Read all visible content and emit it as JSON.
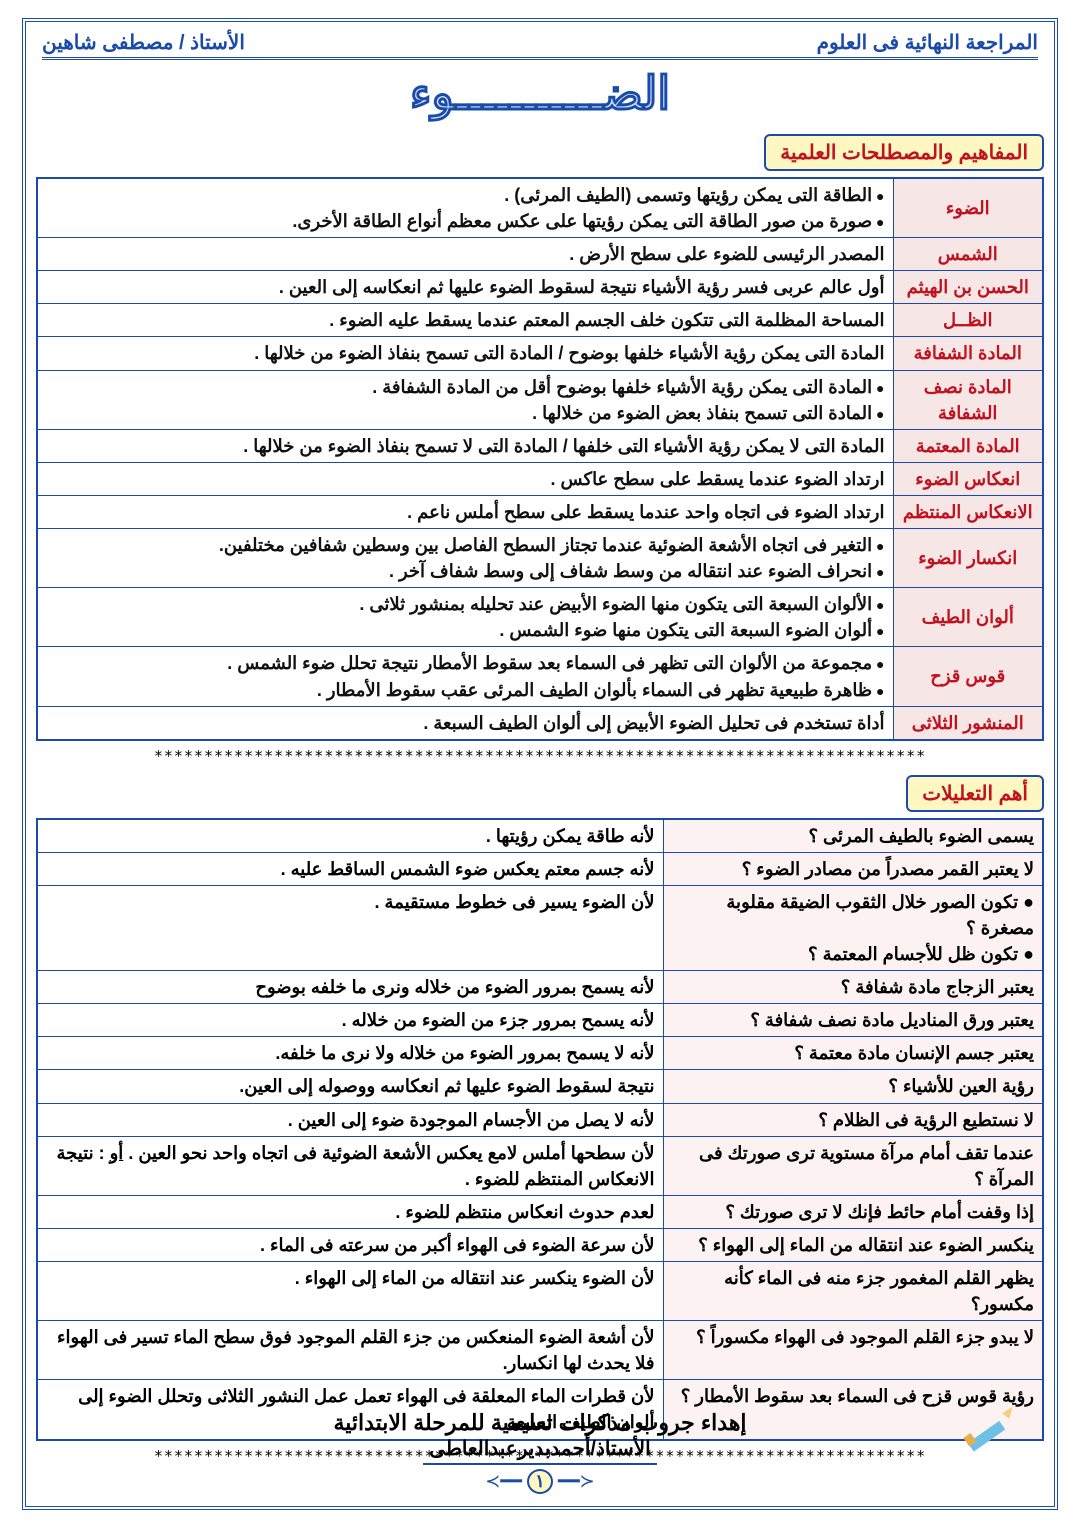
{
  "header": {
    "right": "المراجعة النهائية فى العلوم",
    "left": "الأستاذ / مصطفى شاهين"
  },
  "title": "الضـــــــــــوء",
  "section1_label": "المفاهيم والمصطلحات العلمية",
  "terms": [
    {
      "term": "الضوء",
      "defs": [
        "الطاقة التى يمكن رؤيتها وتسمى (الطيف المرئى) .",
        "صورة من صور الطاقة التى يمكن رؤيتها على عكس معظم أنواع الطاقة الأخرى."
      ]
    },
    {
      "term": "الشمس",
      "defs": [
        "المصدر الرئيسى للضوء على سطح الأرض ."
      ]
    },
    {
      "term": "الحسن بن الهيثم",
      "defs": [
        "أول عالم عربى فسر رؤية الأشياء نتيجة لسقوط الضوء عليها ثم انعكاسه إلى العين ."
      ]
    },
    {
      "term": "الظــل",
      "defs": [
        "المساحة المظلمة التى تتكون خلف الجسم المعتم عندما يسقط عليه الضوء ."
      ]
    },
    {
      "term": "المادة الشفافة",
      "defs": [
        "المادة التى يمكن رؤية الأشياء خلفها بوضوح / المادة التى تسمح بنفاذ الضوء من خلالها ."
      ]
    },
    {
      "term": "المادة نصف الشفافة",
      "defs": [
        "المادة التى يمكن رؤية الأشياء خلفها بوضوح أقل من المادة الشفافة .",
        "المادة التى تسمح بنفاذ بعض الضوء من خلالها ."
      ]
    },
    {
      "term": "المادة المعتمة",
      "defs": [
        "المادة التى لا يمكن رؤية الأشياء التى خلفها / المادة التى لا تسمح بنفاذ الضوء من خلالها ."
      ]
    },
    {
      "term": "انعكاس الضوء",
      "defs": [
        "ارتداد الضوء عندما يسقط على سطح عاكس ."
      ]
    },
    {
      "term": "الانعكاس المنتظم",
      "defs": [
        "ارتداد الضوء فى اتجاه واحد عندما يسقط على سطح أملس ناعم ."
      ]
    },
    {
      "term": "انكسار الضوء",
      "defs": [
        "التغير فى اتجاه الأشعة الضوئية عندما تجتاز السطح الفاصل بين وسطين شفافين مختلفين.",
        "انحراف الضوء عند انتقاله من وسط شفاف إلى وسط شفاف آخر ."
      ]
    },
    {
      "term": "ألوان الطيف",
      "defs": [
        "الألوان السبعة التى يتكون منها الضوء الأبيض عند تحليله بمنشور ثلاثى .",
        "ألوان الضوء السبعة التى يتكون منها ضوء الشمس ."
      ]
    },
    {
      "term": "قوس قزح",
      "defs": [
        "مجموعة من الألوان التى تظهر فى السماء بعد سقوط الأمطار نتيجة تحلل ضوء الشمس .",
        "ظاهرة طبيعية تظهر فى السماء بألوان الطيف المرئى عقب سقوط الأمطار ."
      ]
    },
    {
      "term": "المنشور الثلاثى",
      "defs": [
        "أداة تستخدم فى تحليل الضوء الأبيض إلى ألوان الطيف السبعة ."
      ]
    }
  ],
  "section2_label": "أهم التعليلات",
  "reasons": [
    {
      "q": "يسمى الضوء بالطيف المرئى ؟",
      "a": "لأنه طاقة يمكن رؤيتها ."
    },
    {
      "q": "لا يعتبر القمر مصدراً من مصادر الضوء ؟",
      "a": "لأنه جسم معتم يعكس ضوء الشمس الساقط عليه ."
    },
    {
      "q": "● تكون الصور خلال الثقوب الضيقة مقلوبة مصغرة ؟\n● تكون ظل للأجسام المعتمة ؟",
      "a": "لأن الضوء يسير فى خطوط مستقيمة ."
    },
    {
      "q": "يعتبر الزجاج مادة شفافة ؟",
      "a": "لأنه يسمح بمرور الضوء من خلاله ونرى ما خلفه بوضوح"
    },
    {
      "q": "يعتبر ورق المناديل مادة نصف شفافة ؟",
      "a": "لأنه يسمح بمرور جزء من الضوء من خلاله ."
    },
    {
      "q": "يعتبر جسم الإنسان مادة معتمة ؟",
      "a": "لأنه لا يسمح بمرور الضوء من خلاله ولا نرى ما خلفه."
    },
    {
      "q": "رؤية العين للأشياء ؟",
      "a": "نتيجة لسقوط الضوء عليها ثم انعكاسه ووصوله إلى العين."
    },
    {
      "q": "لا نستطيع الرؤية فى الظلام ؟",
      "a": "لأنه لا يصل من الأجسام الموجودة ضوء إلى العين ."
    },
    {
      "q": "عندما تقف أمام مرآة مستوية ترى صورتك فى المرآة ؟",
      "a": "لأن سطحها أملس لامع يعكس الأشعة الضوئية فى اتجاه واحد نحو العين . أو : نتيجة الانعكاس المنتظم للضوء ."
    },
    {
      "q": "إذا وقفت أمام حائط فإنك لا ترى صورتك ؟",
      "a": "لعدم حدوث انعكاس منتظم للضوء ."
    },
    {
      "q": "ينكسر الضوء عند انتقاله من الماء إلى الهواء ؟",
      "a": "لأن سرعة الضوء فى الهواء أكبر من سرعته فى الماء ."
    },
    {
      "q": "يظهر القلم المغمور جزء منه فى الماء كأنه مكسور؟",
      "a": "لأن الضوء ينكسر عند انتقاله من الماء إلى الهواء ."
    },
    {
      "q": "لا يبدو جزء القلم الموجود فى الهواء مكسوراً ؟",
      "a": "لأن أشعة الضوء المنعكس من جزء القلم الموجود فوق سطح الماء تسير فى الهواء فلا يحدث لها انكسار."
    },
    {
      "q": "رؤية قوس قزح فى السماء بعد سقوط الأمطار ؟",
      "a": "لأن قطرات الماء المعلقة فى الهواء تعمل عمل النشور الثلاثى وتحلل الضوء إلى ألوان الطيف السبعة ."
    }
  ],
  "stars": "*****************************************************************************",
  "footer": {
    "line1": "إهداء جروب مذكرات تعليمية للمرحلة الابتدائية",
    "line2": "الأستاذ/أحمدبديرعبدالعاطى",
    "page": "١"
  },
  "colors": {
    "frame": "#1a4ba8",
    "badge_bg": "#fff7c2",
    "term_bg": "#f7e6e6",
    "accent_red": "#c1121f"
  }
}
